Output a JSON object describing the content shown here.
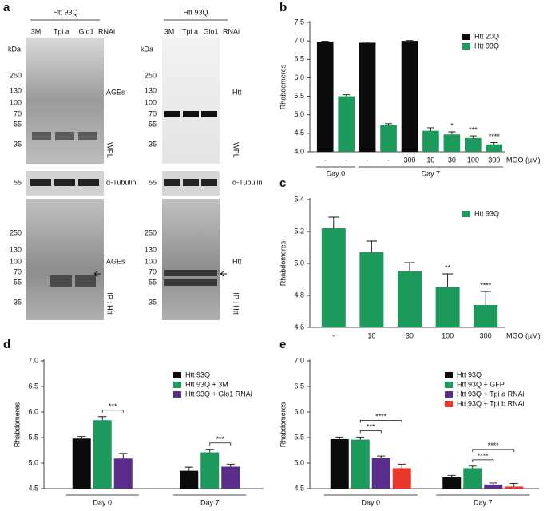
{
  "figure_a": {
    "label": "a",
    "blots": [
      {
        "header": "Htt 93Q",
        "lanes": [
          "3M",
          "Tpi a",
          "Glo1"
        ],
        "lanes_unit": "RNAi",
        "kda": "kDa",
        "markers": [
          250,
          130,
          100,
          70,
          55,
          35
        ],
        "stain": "AGEs",
        "fraction": "WPL",
        "loading": "α-Tubulin",
        "loading_marker": 55,
        "ip_markers": [
          250,
          130,
          100,
          70,
          55,
          35
        ],
        "ip_stain": "AGEs",
        "ip": "IP : Htt"
      },
      {
        "header": "Htt 93Q",
        "lanes": [
          "3M",
          "Tpi a",
          "Glo1"
        ],
        "lanes_unit": "RNAi",
        "kda": "kDa",
        "markers": [
          250,
          130,
          100,
          70,
          55,
          35
        ],
        "stain": "Htt",
        "fraction": "WPL",
        "loading": "α-Tubulin",
        "loading_marker": 55,
        "ip_markers": [
          250,
          130,
          100,
          70,
          55,
          35
        ],
        "ip_stain": "Htt",
        "ip": "IP : Htt"
      }
    ]
  },
  "chart_data": [
    {
      "type": "bar",
      "label": "b",
      "y_label": "Rhabdomeres",
      "x_label": "MGO (µM)",
      "categories": [
        "-",
        "-",
        "-",
        "-",
        "300",
        "10",
        "30",
        "100",
        "300"
      ],
      "groups": [
        {
          "label": "Day 0",
          "span": [
            0,
            1
          ]
        },
        {
          "label": "Day 7",
          "span": [
            2,
            8
          ]
        }
      ],
      "series": [
        {
          "name": "Htt 20Q",
          "color": "#0b0b0b",
          "values": [
            6.98,
            null,
            6.95,
            null,
            7.0,
            null,
            null,
            null,
            null
          ],
          "errors": [
            0.01,
            null,
            0.02,
            null,
            0.01,
            null,
            null,
            null,
            null
          ]
        },
        {
          "name": "Htt 93Q",
          "color": "#1c9a5b",
          "values": [
            null,
            5.5,
            null,
            4.72,
            null,
            4.57,
            4.47,
            4.37,
            4.2
          ],
          "errors": [
            null,
            0.04,
            null,
            0.04,
            null,
            0.08,
            0.07,
            0.06,
            0.05
          ]
        }
      ],
      "annotations": [
        {
          "label": "*",
          "index": 6
        },
        {
          "label": "***",
          "index": 7
        },
        {
          "label": "****",
          "index": 8
        }
      ],
      "ylim": [
        4.0,
        7.5
      ],
      "yticks": [
        {
          "value": 4.0,
          "label": "4.0"
        },
        4.5,
        {
          "value": 5.0,
          "label": "5.0"
        },
        5.5,
        {
          "value": 6.0,
          "label": "6.0"
        },
        6.5,
        {
          "value": 7.0,
          "label": "7.0"
        },
        7.5
      ],
      "legend": "upper right",
      "category_underline": false
    },
    {
      "type": "bar",
      "label": "c",
      "y_label": "Rhabdomeres",
      "x_label": "MGO (µM)",
      "categories": [
        "-",
        "10",
        "30",
        "100",
        "300"
      ],
      "series": [
        {
          "name": "Htt 93Q",
          "color": "#1c9a5b",
          "values": [
            5.22,
            5.07,
            4.95,
            4.85,
            4.74
          ],
          "errors": [
            0.07,
            0.07,
            0.055,
            0.085,
            0.085
          ]
        }
      ],
      "annotations": [
        {
          "label": "**",
          "index": 3
        },
        {
          "label": "****",
          "index": 4
        }
      ],
      "ylim": [
        4.6,
        5.4
      ],
      "yticks": [
        4.6,
        4.8,
        {
          "value": 5.0,
          "label": "5.0"
        },
        5.2,
        5.4
      ],
      "legend": "upper right",
      "category_underline": false
    },
    {
      "type": "bar",
      "label": "d",
      "y_label": "Rhabdomeres",
      "categories": [
        "Day 0",
        "Day 7"
      ],
      "series": [
        {
          "name": "Htt 93Q",
          "color": "#0b0b0b",
          "values": [
            5.48,
            4.85
          ],
          "errors": [
            0.04,
            0.07
          ]
        },
        {
          "name": "Htt 93Q + 3M",
          "color": "#1c9a5b",
          "values": [
            5.84,
            5.21
          ],
          "errors": [
            0.07,
            0.06
          ]
        },
        {
          "name": "Htt 93Q + Glo1 RNAi",
          "color": "#5a2d8c",
          "values": [
            5.09,
            4.93
          ],
          "errors": [
            0.1,
            0.05
          ]
        }
      ],
      "brackets": [
        {
          "label": "***",
          "category": 0,
          "between": [
            1,
            2
          ]
        },
        {
          "label": "***",
          "category": 1,
          "between": [
            1,
            2
          ]
        }
      ],
      "ylim": [
        4.5,
        7.0
      ],
      "yticks": [
        4.5,
        {
          "value": 5.0,
          "label": "5.0"
        },
        5.5,
        {
          "value": 6.0,
          "label": "6.0"
        },
        6.5,
        {
          "value": 7.0,
          "label": "7.0"
        }
      ],
      "legend": "upper right",
      "category_underline": true
    },
    {
      "type": "bar",
      "label": "e",
      "y_label": "Rhabdomeres",
      "categories": [
        "Day 0",
        "Day 7"
      ],
      "series": [
        {
          "name": "Htt 93Q",
          "color": "#0b0b0b",
          "values": [
            5.47,
            4.72
          ],
          "errors": [
            0.04,
            0.04
          ]
        },
        {
          "name": "Htt 93Q + GFP",
          "color": "#1c9a5b",
          "values": [
            5.46,
            4.9
          ],
          "errors": [
            0.05,
            0.04
          ]
        },
        {
          "name": "Htt 93Q + Tpi a RNAi",
          "color": "#5a2d8c",
          "values": [
            5.1,
            4.58
          ],
          "errors": [
            0.04,
            0.03
          ]
        },
        {
          "name": "Htt 93Q + Tpi b RNAi",
          "color": "#e8372b",
          "values": [
            4.9,
            4.54
          ],
          "errors": [
            0.08,
            0.06
          ]
        }
      ],
      "brackets": [
        {
          "label": "***",
          "category": 0,
          "between": [
            1,
            2
          ]
        },
        {
          "label": "****",
          "category": 0,
          "between": [
            1,
            3
          ]
        },
        {
          "label": "****",
          "category": 1,
          "between": [
            1,
            2
          ]
        },
        {
          "label": "****",
          "category": 1,
          "between": [
            1,
            3
          ]
        }
      ],
      "ylim": [
        4.5,
        7.0
      ],
      "yticks": [
        4.5,
        {
          "value": 5.0,
          "label": "5.0"
        },
        5.5,
        {
          "value": 6.0,
          "label": "6.0"
        },
        6.5,
        {
          "value": 7.0,
          "label": "7.0"
        }
      ],
      "legend": "upper right",
      "category_underline": true
    }
  ]
}
